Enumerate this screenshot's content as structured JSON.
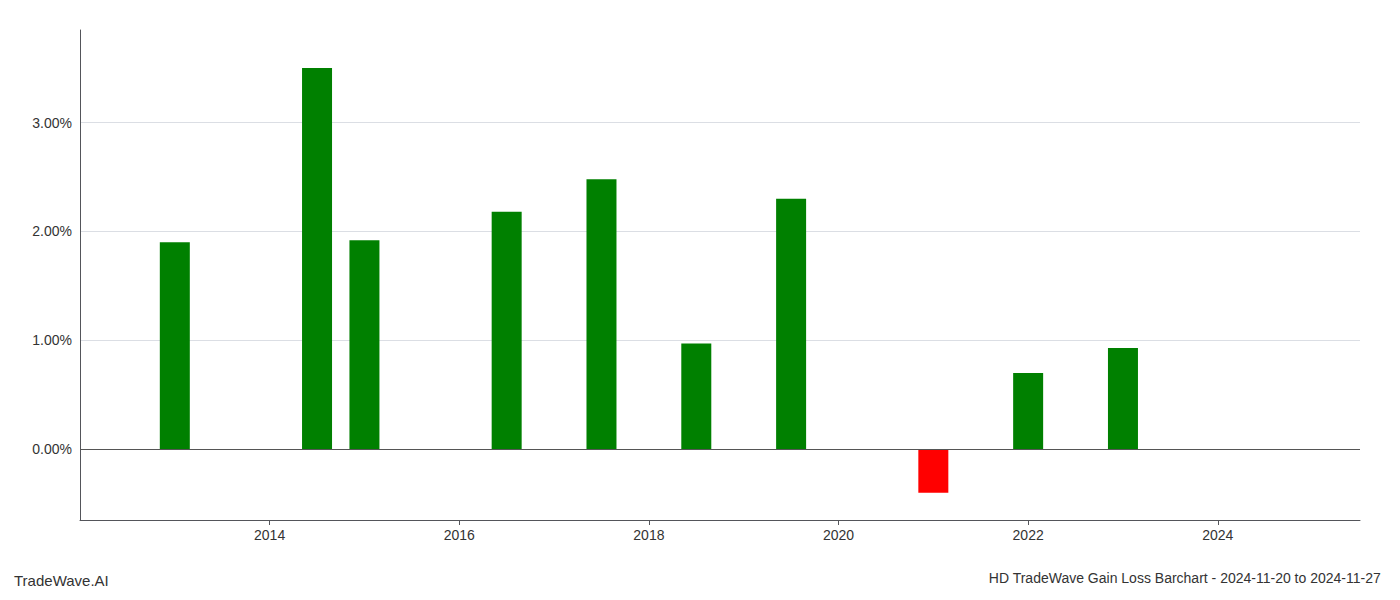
{
  "chart_data": {
    "type": "bar",
    "title": "HD TradeWave Gain Loss Barchart - 2024-11-20 to 2024-11-27",
    "annotations": [
      "TradeWave.AI"
    ],
    "x": [
      2013,
      2014.5,
      2015,
      2016.5,
      2017.5,
      2018.5,
      2019.5,
      2021,
      2022,
      2023
    ],
    "values": [
      1.9,
      3.5,
      1.92,
      2.18,
      2.48,
      0.97,
      2.3,
      -0.4,
      0.7,
      0.93
    ],
    "colors": [
      "#008000",
      "#008000",
      "#008000",
      "#008000",
      "#008000",
      "#008000",
      "#008000",
      "#ff0000",
      "#008000",
      "#008000"
    ],
    "xlim": [
      2012.0,
      2025.5
    ],
    "xticks": [
      2014,
      2016,
      2018,
      2020,
      2022,
      2024
    ],
    "ylim": [
      -0.65,
      3.85
    ],
    "yticks": [
      {
        "value": 0.0,
        "label": "0.00%"
      },
      {
        "value": 1.0,
        "label": "1.00%"
      },
      {
        "value": 2.0,
        "label": "2.00%"
      },
      {
        "value": 3.0,
        "label": "3.00%"
      }
    ],
    "grid": true
  }
}
